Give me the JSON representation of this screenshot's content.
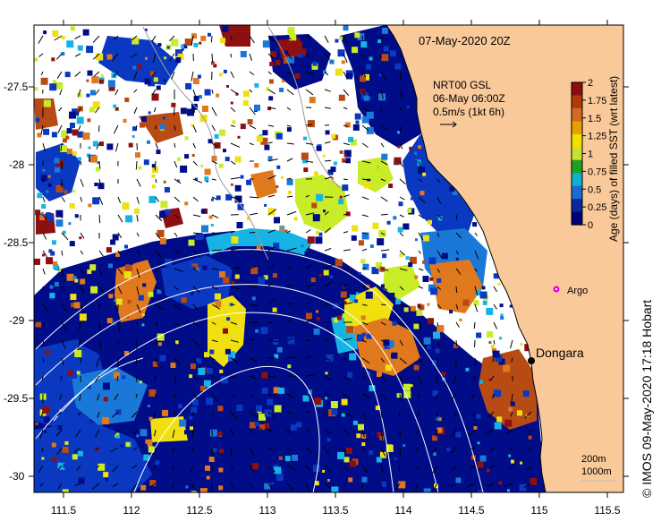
{
  "map": {
    "title": "07-May-2020 20Z",
    "credit": "© IMOS 09-May-2020 17:18 Hobart",
    "current_info": {
      "line1": "NRT00 GSL",
      "line2": "06-May 06:00Z",
      "line3": "0.5m/s (1kt 6h)"
    },
    "places": {
      "town": "Dongara",
      "argo": "Argo"
    },
    "isobaths": {
      "shallow": "200m",
      "deep": "1000m"
    },
    "axes": {
      "lon_ticks": [
        "111.5",
        "112",
        "112.5",
        "113",
        "113.5",
        "114",
        "114.5",
        "115",
        "115.5"
      ],
      "lat_ticks": [
        "-27.5",
        "-28",
        "-28.5",
        "-29",
        "-29.5",
        "-30"
      ]
    },
    "colorbar": {
      "title": "Age (days) of filled SST (wrt latest)",
      "ticks": [
        "2",
        "1.75",
        "1.5",
        "1.25",
        "1",
        "0.75",
        "0.5",
        "0.25",
        "0"
      ],
      "colors": [
        "#8b0d0d",
        "#b03a0a",
        "#d2691e",
        "#e8a000",
        "#f0e000",
        "#c8e030",
        "#20a020",
        "#10b0d0",
        "#1a6ad0",
        "#0a2a9a",
        "#00007a"
      ]
    },
    "colors": {
      "land": "#fac99a",
      "deep_blue": "#000c88",
      "mid_blue": "#0a38c0",
      "light_blue": "#1a78d8",
      "cyan": "#16b4e4",
      "yellow": "#f0e010",
      "lime": "#c8ec28",
      "orange": "#e0781e",
      "rust": "#b84a14",
      "dark_red": "#8c1010",
      "argo": "#e000e0"
    }
  }
}
